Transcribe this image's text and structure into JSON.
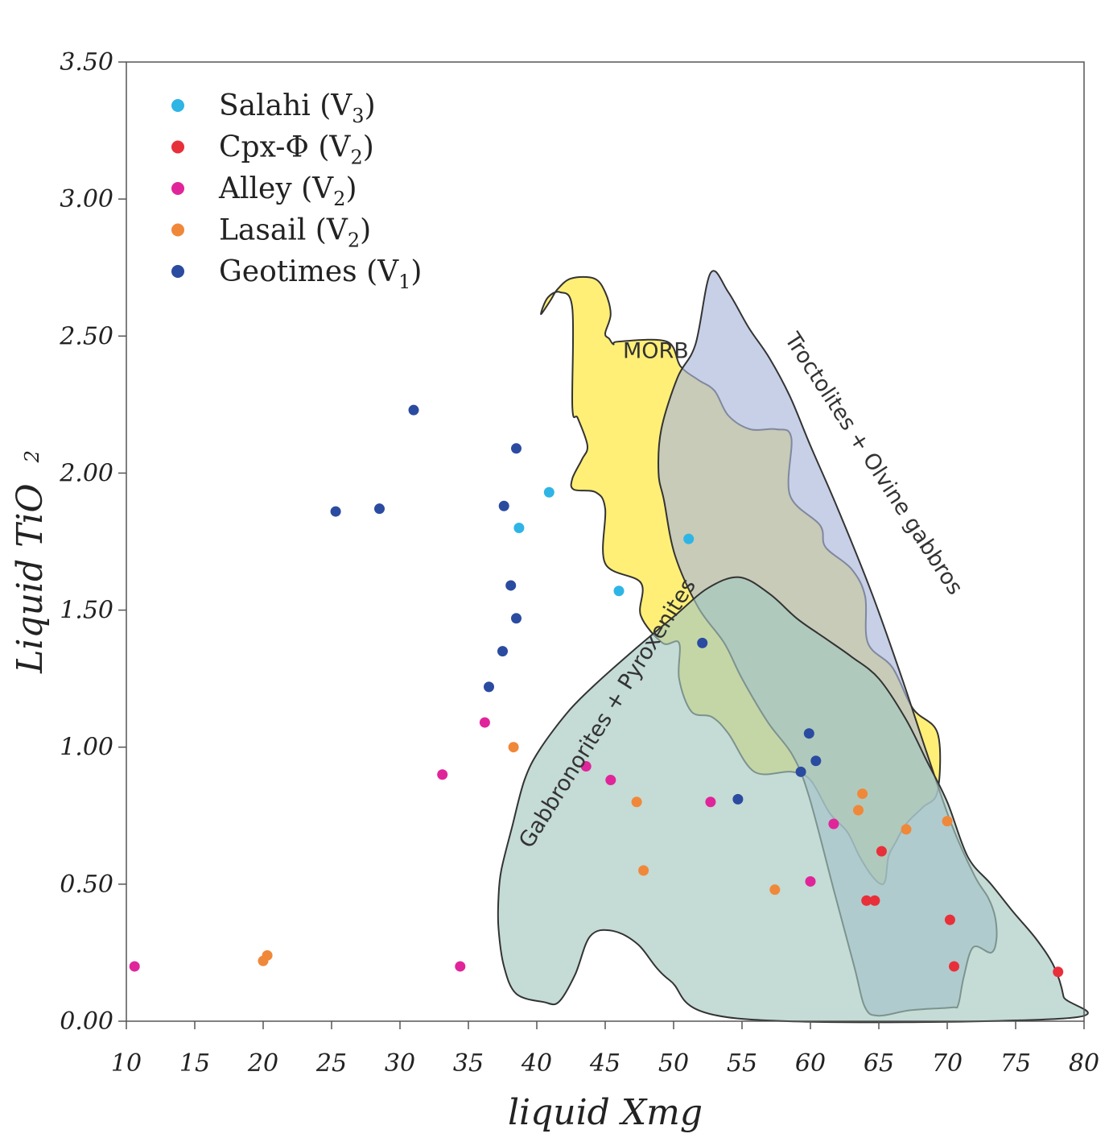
{
  "chart_data": {
    "type": "scatter",
    "title": "",
    "xlabel": "liquid Xmg",
    "ylabel": "Liquid TiO",
    "ylabel_subscript": "2",
    "xlim": [
      10,
      80
    ],
    "ylim": [
      0,
      3.5
    ],
    "x_ticks": [
      "10",
      "15",
      "20",
      "25",
      "30",
      "35",
      "40",
      "45",
      "50",
      "55",
      "60",
      "65",
      "70",
      "75",
      "80"
    ],
    "y_ticks": [
      "0.00",
      "0.50",
      "1.00",
      "1.50",
      "2.00",
      "2.50",
      "3.00",
      "3.50"
    ],
    "grid": false,
    "legend_position": "top-left",
    "series": [
      {
        "name": "Salahi (V",
        "sub": "3",
        "suffix": ")",
        "color": "#2eb5e6",
        "points": [
          [
            38.7,
            1.8
          ],
          [
            40.9,
            1.93
          ],
          [
            46.0,
            1.57
          ],
          [
            51.1,
            1.76
          ]
        ]
      },
      {
        "name": "Cpx-Φ (V",
        "sub": "2",
        "suffix": ")",
        "color": "#e8303a",
        "points": [
          [
            64.1,
            0.44
          ],
          [
            64.7,
            0.44
          ],
          [
            65.2,
            0.62
          ],
          [
            70.2,
            0.37
          ],
          [
            70.5,
            0.2
          ],
          [
            78.1,
            0.18
          ]
        ]
      },
      {
        "name": "Alley (V",
        "sub": "2",
        "suffix": ")",
        "color": "#e0259a",
        "points": [
          [
            10.6,
            0.2
          ],
          [
            33.1,
            0.9
          ],
          [
            34.4,
            0.2
          ],
          [
            36.2,
            1.09
          ],
          [
            43.6,
            0.93
          ],
          [
            45.4,
            0.88
          ],
          [
            52.7,
            0.8
          ],
          [
            60.0,
            0.51
          ],
          [
            61.7,
            0.72
          ]
        ]
      },
      {
        "name": "Lasail (V",
        "sub": "2",
        "suffix": ")",
        "color": "#f0883a",
        "points": [
          [
            20.0,
            0.22
          ],
          [
            20.3,
            0.24
          ],
          [
            38.3,
            1.0
          ],
          [
            47.3,
            0.8
          ],
          [
            47.8,
            0.55
          ],
          [
            57.4,
            0.48
          ],
          [
            63.5,
            0.77
          ],
          [
            63.8,
            0.83
          ],
          [
            67.0,
            0.7
          ],
          [
            70.0,
            0.73
          ]
        ]
      },
      {
        "name": "Geotimes (V",
        "sub": "1",
        "suffix": ")",
        "color": "#2a4ba0",
        "points": [
          [
            25.3,
            1.86
          ],
          [
            28.5,
            1.87
          ],
          [
            31.0,
            2.23
          ],
          [
            36.5,
            1.22
          ],
          [
            37.5,
            1.35
          ],
          [
            37.6,
            1.88
          ],
          [
            38.1,
            1.59
          ],
          [
            38.5,
            2.09
          ],
          [
            38.5,
            1.47
          ],
          [
            52.1,
            1.38
          ],
          [
            54.7,
            0.81
          ],
          [
            59.3,
            0.91
          ],
          [
            59.9,
            1.05
          ],
          [
            60.4,
            0.95
          ]
        ]
      }
    ],
    "fields": [
      {
        "label": "MORB",
        "fill": "#ffe62e",
        "polygon": [
          [
            40.3,
            2.58
          ],
          [
            41.0,
            2.63
          ],
          [
            41.5,
            2.67
          ],
          [
            42.5,
            2.71
          ],
          [
            44.2,
            2.71
          ],
          [
            45.0,
            2.66
          ],
          [
            45.4,
            2.58
          ],
          [
            45.0,
            2.51
          ],
          [
            45.3,
            2.49
          ],
          [
            45.6,
            2.47
          ],
          [
            46.0,
            2.48
          ],
          [
            49.5,
            2.48
          ],
          [
            50.5,
            2.39
          ],
          [
            51.8,
            2.34
          ],
          [
            53.0,
            2.3
          ],
          [
            54.0,
            2.21
          ],
          [
            55.6,
            2.16
          ],
          [
            57.5,
            2.16
          ],
          [
            58.6,
            2.13
          ],
          [
            58.5,
            1.92
          ],
          [
            60.7,
            1.81
          ],
          [
            61.1,
            1.73
          ],
          [
            63.0,
            1.65
          ],
          [
            64.0,
            1.55
          ],
          [
            64.2,
            1.38
          ],
          [
            66.0,
            1.29
          ],
          [
            67.5,
            1.14
          ],
          [
            69.3,
            1.05
          ],
          [
            69.3,
            0.84
          ],
          [
            68.2,
            0.78
          ],
          [
            67.0,
            0.72
          ],
          [
            66.2,
            0.65
          ],
          [
            65.7,
            0.6
          ],
          [
            65.5,
            0.52
          ],
          [
            65.2,
            0.5
          ],
          [
            64.5,
            0.53
          ],
          [
            63.6,
            0.6
          ],
          [
            62.7,
            0.69
          ],
          [
            61.4,
            0.76
          ],
          [
            60.0,
            0.88
          ],
          [
            58.6,
            0.91
          ],
          [
            55.9,
            0.91
          ],
          [
            54.0,
            1.05
          ],
          [
            52.8,
            1.11
          ],
          [
            51.3,
            1.13
          ],
          [
            50.4,
            1.25
          ],
          [
            50.4,
            1.38
          ],
          [
            49.2,
            1.38
          ],
          [
            47.6,
            1.48
          ],
          [
            47.6,
            1.6
          ],
          [
            45.0,
            1.67
          ],
          [
            45.0,
            1.87
          ],
          [
            44.3,
            1.93
          ],
          [
            42.7,
            1.94
          ],
          [
            42.6,
            1.98
          ],
          [
            43.3,
            2.05
          ],
          [
            43.7,
            2.1
          ],
          [
            43.0,
            2.2
          ],
          [
            42.6,
            2.24
          ],
          [
            42.6,
            2.6
          ],
          [
            41.7,
            2.66
          ],
          [
            40.8,
            2.64
          ]
        ]
      },
      {
        "label": "Troctolites + Olvine gabbros",
        "fill": "#a9b7da",
        "polygon": [
          [
            52.7,
            2.73
          ],
          [
            54.0,
            2.66
          ],
          [
            55.5,
            2.53
          ],
          [
            57.0,
            2.42
          ],
          [
            58.5,
            2.28
          ],
          [
            60.0,
            2.1
          ],
          [
            62.0,
            1.87
          ],
          [
            64.5,
            1.56
          ],
          [
            66.7,
            1.25
          ],
          [
            68.5,
            0.98
          ],
          [
            70.3,
            0.72
          ],
          [
            72.0,
            0.53
          ],
          [
            73.0,
            0.45
          ],
          [
            73.5,
            0.38
          ],
          [
            73.6,
            0.3
          ],
          [
            73.2,
            0.25
          ],
          [
            71.9,
            0.27
          ],
          [
            71.2,
            0.16
          ],
          [
            70.8,
            0.06
          ],
          [
            70.3,
            0.05
          ],
          [
            67.3,
            0.04
          ],
          [
            65.0,
            0.02
          ],
          [
            64.0,
            0.05
          ],
          [
            63.2,
            0.2
          ],
          [
            61.7,
            0.48
          ],
          [
            59.9,
            0.82
          ],
          [
            58.7,
            0.97
          ],
          [
            56.9,
            1.09
          ],
          [
            55.0,
            1.25
          ],
          [
            53.7,
            1.38
          ],
          [
            51.8,
            1.51
          ],
          [
            50.1,
            1.7
          ],
          [
            49.3,
            1.9
          ],
          [
            48.9,
            2.0
          ],
          [
            49.1,
            2.16
          ],
          [
            50.3,
            2.35
          ],
          [
            51.6,
            2.47
          ]
        ]
      },
      {
        "label": "Gabbronorites + Pyroxenites",
        "fill": "#a4c8c0",
        "polygon": [
          [
            54.8,
            1.62
          ],
          [
            57.0,
            1.56
          ],
          [
            59.0,
            1.47
          ],
          [
            61.0,
            1.4
          ],
          [
            63.0,
            1.33
          ],
          [
            65.0,
            1.25
          ],
          [
            67.0,
            1.1
          ],
          [
            68.5,
            0.95
          ],
          [
            70.0,
            0.8
          ],
          [
            71.5,
            0.6
          ],
          [
            73.2,
            0.5
          ],
          [
            74.8,
            0.4
          ],
          [
            76.5,
            0.3
          ],
          [
            77.8,
            0.2
          ],
          [
            78.5,
            0.09
          ],
          [
            78.5,
            0.01
          ],
          [
            54.7,
            0.01
          ],
          [
            49.7,
            0.15
          ],
          [
            47.4,
            0.28
          ],
          [
            45.5,
            0.33
          ],
          [
            43.9,
            0.31
          ],
          [
            42.8,
            0.17
          ],
          [
            41.6,
            0.07
          ],
          [
            40.5,
            0.07
          ],
          [
            38.5,
            0.1
          ],
          [
            37.6,
            0.2
          ],
          [
            37.2,
            0.34
          ],
          [
            37.2,
            0.45
          ],
          [
            37.4,
            0.55
          ],
          [
            38.2,
            0.71
          ],
          [
            39.1,
            0.88
          ],
          [
            40.2,
            0.99
          ],
          [
            42.3,
            1.13
          ],
          [
            44.3,
            1.23
          ],
          [
            47.0,
            1.35
          ],
          [
            50.1,
            1.48
          ],
          [
            52.5,
            1.58
          ]
        ]
      }
    ]
  }
}
